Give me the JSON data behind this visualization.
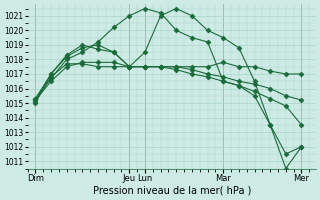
{
  "title": "",
  "xlabel": "Pression niveau de la mer( hPa )",
  "ylabel": "",
  "bg_color": "#cdeae4",
  "grid_color": "#a8d5c8",
  "line_color": "#1a6b3a",
  "ylim": [
    1010.5,
    1021.8
  ],
  "yticks": [
    1011,
    1012,
    1013,
    1014,
    1015,
    1016,
    1017,
    1018,
    1019,
    1020,
    1021
  ],
  "day_labels": [
    "Dim",
    "Jeu",
    "Lun",
    "Mar",
    "Mer"
  ],
  "day_positions": [
    0,
    72,
    84,
    144,
    204
  ],
  "xlim": [
    -6,
    215
  ],
  "lines": [
    {
      "x": [
        0,
        12,
        24,
        36,
        48,
        60,
        72,
        84,
        96,
        108,
        120,
        132,
        144,
        156,
        168,
        180,
        192,
        204
      ],
      "y": [
        1015.2,
        1016.5,
        1017.5,
        1017.8,
        1017.8,
        1017.8,
        1017.5,
        1017.5,
        1017.5,
        1017.5,
        1017.5,
        1017.5,
        1017.8,
        1017.5,
        1017.5,
        1017.2,
        1017.0,
        1017.0
      ],
      "marker": "D",
      "markersize": 2.5
    },
    {
      "x": [
        0,
        12,
        24,
        36,
        48,
        60,
        72,
        84,
        96,
        108,
        120,
        132,
        144,
        156,
        168,
        180,
        192,
        204
      ],
      "y": [
        1015.3,
        1016.7,
        1018.0,
        1018.5,
        1019.2,
        1020.2,
        1021.0,
        1021.5,
        1021.2,
        1020.0,
        1019.5,
        1019.2,
        1016.5,
        1016.2,
        1015.5,
        1013.5,
        1010.5,
        1012.0
      ],
      "marker": "D",
      "markersize": 2.5
    },
    {
      "x": [
        0,
        12,
        24,
        36,
        48,
        60,
        72,
        84,
        96,
        108,
        120,
        132,
        144,
        156,
        168,
        180,
        192,
        204
      ],
      "y": [
        1015.3,
        1017.0,
        1018.2,
        1018.8,
        1019.0,
        1018.5,
        1017.5,
        1018.5,
        1021.0,
        1021.5,
        1021.0,
        1020.0,
        1019.5,
        1018.8,
        1016.5,
        1013.5,
        1011.5,
        1012.0
      ],
      "marker": "D",
      "markersize": 2.5
    },
    {
      "x": [
        0,
        12,
        24,
        36,
        48,
        60,
        72,
        84,
        96,
        108,
        120,
        132,
        144,
        156,
        168,
        180,
        192,
        204
      ],
      "y": [
        1015.1,
        1016.8,
        1017.7,
        1017.7,
        1017.5,
        1017.5,
        1017.5,
        1017.5,
        1017.5,
        1017.5,
        1017.3,
        1017.0,
        1016.8,
        1016.5,
        1016.3,
        1016.0,
        1015.5,
        1015.2
      ],
      "marker": "D",
      "markersize": 2.5
    },
    {
      "x": [
        0,
        12,
        24,
        36,
        48,
        60,
        72,
        84,
        96,
        108,
        120,
        132,
        144,
        156,
        168,
        180,
        192,
        204
      ],
      "y": [
        1015.0,
        1017.0,
        1018.3,
        1019.0,
        1018.7,
        1018.5,
        1017.5,
        1017.5,
        1017.5,
        1017.3,
        1017.0,
        1016.8,
        1016.5,
        1016.2,
        1015.8,
        1015.3,
        1014.8,
        1013.5
      ],
      "marker": "D",
      "markersize": 2.5
    }
  ]
}
